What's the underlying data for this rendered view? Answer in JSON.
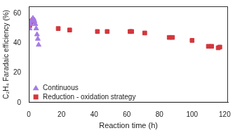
{
  "chart_data": {
    "type": "scatter",
    "x_label": "Reaction time (h)",
    "y_label": "C₂H₄ Faradaic efficiency (%)",
    "xlim": [
      0,
      122
    ],
    "xticks": [
      0,
      20,
      40,
      60,
      80,
      100,
      120
    ],
    "ylim": [
      0,
      65
    ],
    "yticks": [
      0,
      20,
      40,
      60
    ],
    "grid": false,
    "legend": "lower left",
    "series": [
      {
        "name": "Continuous",
        "color": "#a57be6",
        "marker": "triangle",
        "x": [
          0.5,
          1,
          1.5,
          2,
          2.5,
          3,
          3.5,
          4,
          4.5,
          5,
          5.5,
          6
        ],
        "values": [
          50,
          53,
          55,
          56,
          57,
          56,
          55,
          53,
          50,
          46,
          43,
          39
        ]
      },
      {
        "name": "Reduction - oxidation strategy",
        "color": "#d2373c",
        "marker": "square",
        "x": [
          0.5,
          1,
          1.5,
          2,
          2.5,
          3,
          18,
          25,
          42,
          48,
          62,
          63,
          71,
          86,
          88,
          100,
          110,
          112,
          116,
          117
        ],
        "values": [
          52,
          54,
          55,
          55,
          56,
          55,
          50,
          49,
          48,
          48,
          48,
          48,
          47,
          44,
          44,
          42,
          38,
          38,
          37,
          37.5
        ]
      }
    ]
  }
}
